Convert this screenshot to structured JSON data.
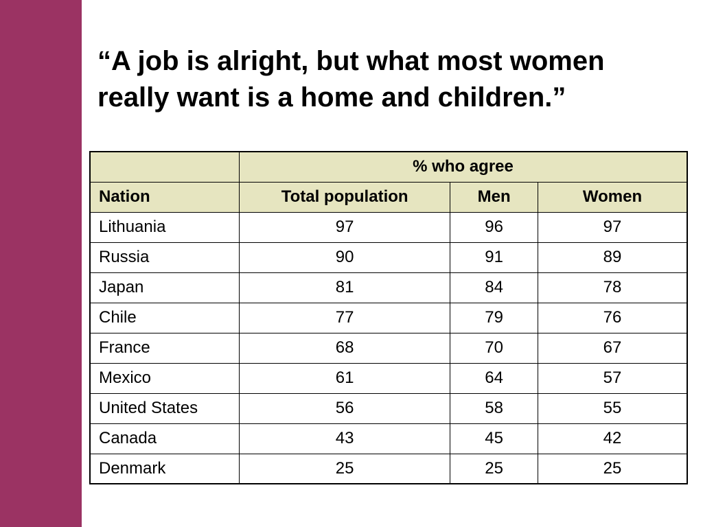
{
  "colors": {
    "sidebar": "#9b3363",
    "header_fill": "#e6e5c0",
    "text": "#000000",
    "border": "#000000"
  },
  "title": {
    "line1": "“A job is alright, but what most women",
    "line2": "really want is a home and children.”"
  },
  "table": {
    "group_header": "% who agree",
    "columns": [
      "Nation",
      "Total population",
      "Men",
      "Women"
    ],
    "rows": [
      [
        "Lithuania",
        "97",
        "96",
        "97"
      ],
      [
        "Russia",
        "90",
        "91",
        "89"
      ],
      [
        "Japan",
        "81",
        "84",
        "78"
      ],
      [
        "Chile",
        "77",
        "79",
        "76"
      ],
      [
        "France",
        "68",
        "70",
        "67"
      ],
      [
        "Mexico",
        "61",
        "64",
        "57"
      ],
      [
        "United States",
        "56",
        "58",
        "55"
      ],
      [
        "Canada",
        "43",
        "45",
        "42"
      ],
      [
        "Denmark",
        "25",
        "25",
        "25"
      ]
    ]
  }
}
